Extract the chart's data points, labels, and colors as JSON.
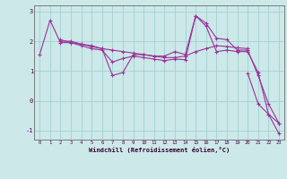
{
  "title": "",
  "xlabel": "Windchill (Refroidissement éolien,°C)",
  "ylabel": "",
  "background_color": "#cce8e8",
  "grid_color": "#99cccc",
  "line_color": "#993399",
  "xlim": [
    -0.5,
    23.5
  ],
  "ylim": [
    -1.3,
    3.2
  ],
  "yticks": [
    -1,
    0,
    1,
    2,
    3
  ],
  "xtick_labels": [
    "0",
    "1",
    "2",
    "3",
    "4",
    "5",
    "6",
    "7",
    "8",
    "9",
    "10",
    "11",
    "12",
    "13",
    "14",
    "15",
    "16",
    "17",
    "18",
    "19",
    "20",
    "21",
    "22",
    "23"
  ],
  "series": [
    [
      1.55,
      2.7,
      1.95,
      1.95,
      1.9,
      1.85,
      1.75,
      0.85,
      0.95,
      1.55,
      1.55,
      1.5,
      1.5,
      1.65,
      1.55,
      2.85,
      2.5,
      1.65,
      1.7,
      1.65,
      1.65,
      0.95,
      -0.45,
      -0.75
    ],
    [
      null,
      null,
      2.0,
      2.0,
      1.9,
      1.82,
      1.75,
      1.7,
      1.65,
      1.6,
      1.55,
      1.5,
      1.45,
      1.45,
      1.5,
      1.65,
      1.75,
      1.85,
      1.82,
      1.78,
      1.75,
      null,
      null,
      null
    ],
    [
      null,
      null,
      2.05,
      1.95,
      1.85,
      1.75,
      1.7,
      1.3,
      1.42,
      1.5,
      1.45,
      1.4,
      1.35,
      1.4,
      1.38,
      2.85,
      2.6,
      2.1,
      2.05,
      1.7,
      1.7,
      0.85,
      -0.1,
      -0.75
    ],
    [
      null,
      null,
      null,
      null,
      null,
      null,
      null,
      null,
      null,
      null,
      null,
      null,
      null,
      null,
      null,
      null,
      null,
      null,
      null,
      null,
      0.92,
      -0.1,
      -0.45,
      -1.1
    ]
  ]
}
